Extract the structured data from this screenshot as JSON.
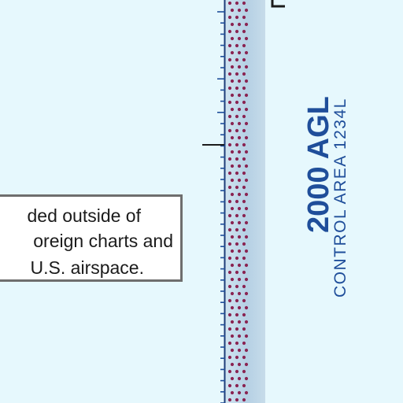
{
  "note": {
    "line1": "ded outside of",
    "line2": "oreign charts and",
    "line3": "U.S. airspace."
  },
  "airspace": {
    "altitude_label": "2000 AGL",
    "control_area_label": "CONTROL AREA 1234L"
  },
  "colors": {
    "background": "#e6f8fd",
    "band": "#b7d3e6",
    "band_dots": "#8a2452",
    "label": "#1f4e9a",
    "border_ticks": "#1f4e9a",
    "note_border": "#6e6e6e"
  }
}
